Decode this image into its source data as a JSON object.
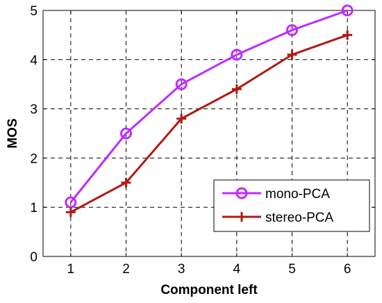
{
  "chart_data": {
    "type": "line",
    "x": [
      1,
      2,
      3,
      4,
      5,
      6
    ],
    "xlabel": "Component left",
    "ylabel": "MOS",
    "xlim": [
      0.5,
      6.5
    ],
    "ylim": [
      0,
      5
    ],
    "xticks": [
      "1",
      "2",
      "3",
      "4",
      "5",
      "6"
    ],
    "yticks": [
      "0",
      "1",
      "2",
      "3",
      "4",
      "5"
    ],
    "grid": true,
    "legend_position": "bottom-right",
    "series": [
      {
        "name": "mono-PCA",
        "values": [
          1.1,
          2.5,
          3.5,
          4.1,
          4.6,
          5.0
        ],
        "color": "#bf2bff",
        "marker": "circle"
      },
      {
        "name": "stereo-PCA",
        "values": [
          0.9,
          1.5,
          2.8,
          3.4,
          4.1,
          4.5
        ],
        "color": "#b01a12",
        "marker": "plus"
      }
    ]
  }
}
